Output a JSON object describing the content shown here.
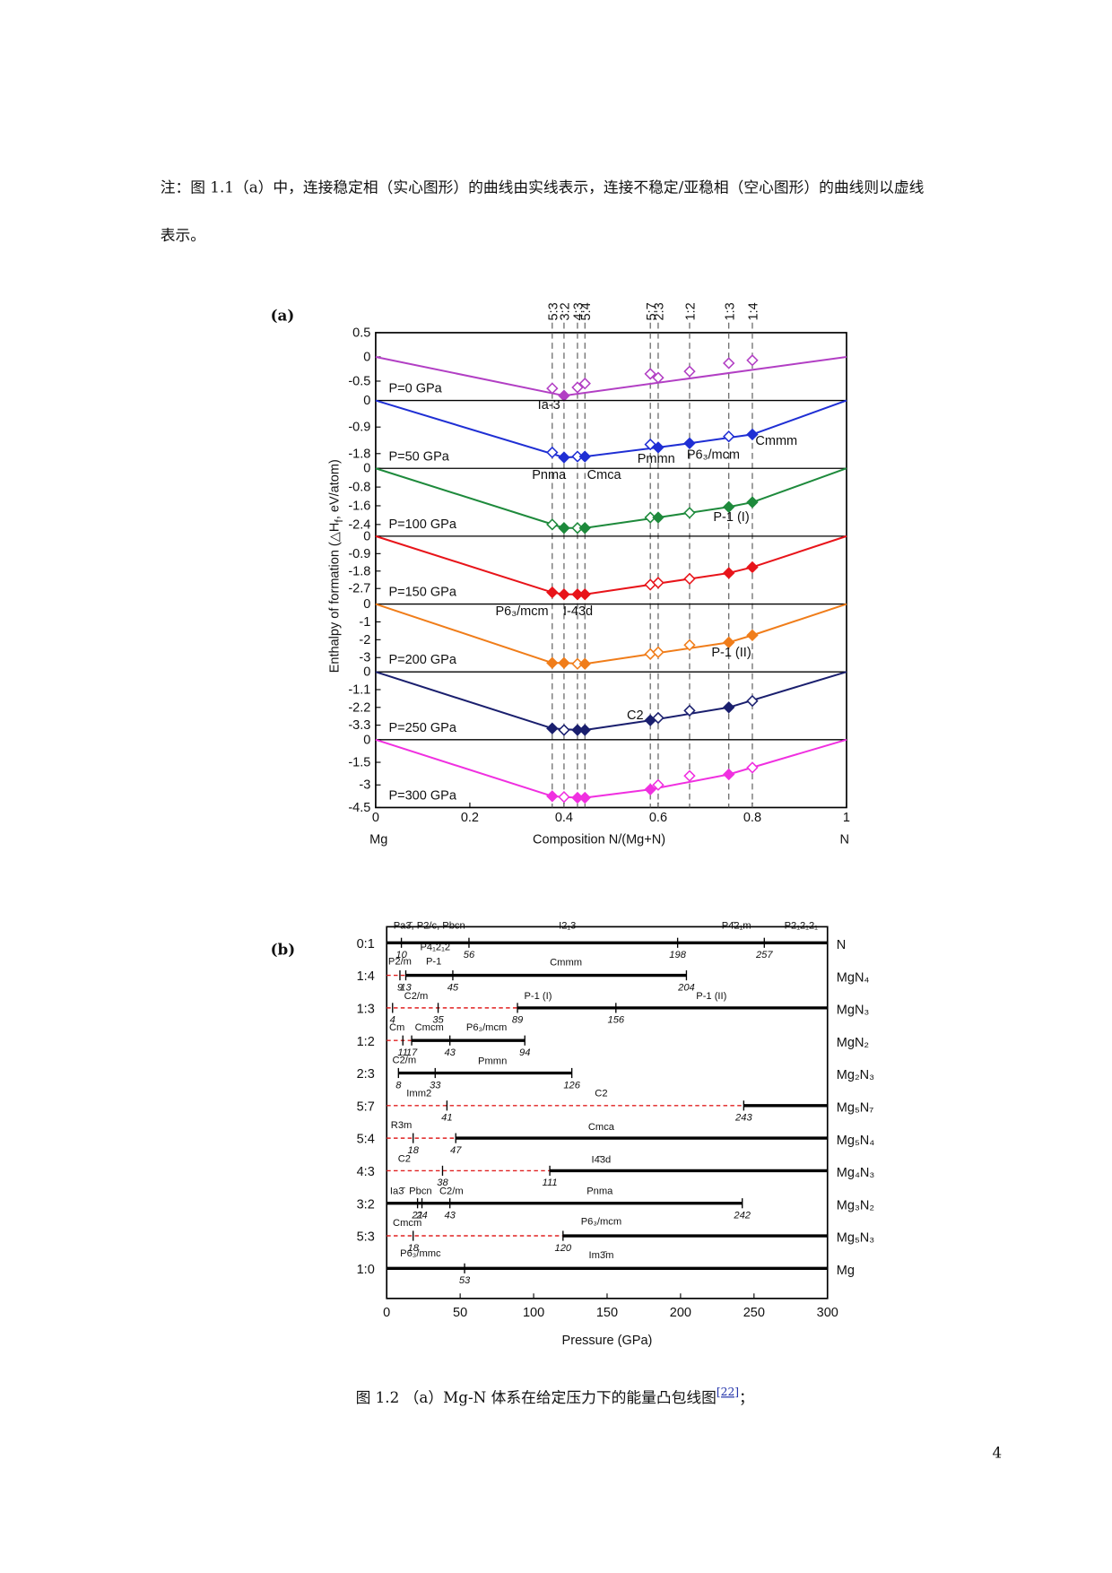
{
  "note": [
    "注：图 1.1（a）中，连接稳定相（实心图形）的曲线由实线表示，连接不稳定/亚稳相（空心图形）的曲线则以虚线",
    "表示。"
  ],
  "chart_data": [
    {
      "type": "convex-hull",
      "panel_label": "(a)",
      "xlabel": "Composition N/(Mg+N)",
      "x_end_labels": [
        "Mg",
        "N"
      ],
      "ylabel": [
        "Enthalpy of formation (△H",
        "f",
        ", eV/atom)"
      ],
      "xlim": [
        0,
        1
      ],
      "xticks": [
        0,
        0.2,
        0.4,
        0.6,
        0.8,
        1
      ],
      "x2ticks": [
        {
          "value": 0.375,
          "label": "5:3"
        },
        {
          "value": 0.4,
          "label": "3:2"
        },
        {
          "value": 0.4286,
          "label": "4:3"
        },
        {
          "value": 0.4444,
          "label": "5:4"
        },
        {
          "value": 0.5833,
          "label": "5:7"
        },
        {
          "value": 0.6,
          "label": "2:3"
        },
        {
          "value": 0.6667,
          "label": "1:2"
        },
        {
          "value": 0.75,
          "label": "1:3"
        },
        {
          "value": 0.8,
          "label": "1:4"
        }
      ],
      "x": [
        0,
        0.375,
        0.4,
        0.4286,
        0.4444,
        0.5833,
        0.6,
        0.6667,
        0.75,
        0.8,
        1
      ],
      "panels": [
        {
          "name": "P=0 GPa",
          "color": "#b23fc4",
          "ylim": [
            -0.9,
            0.5
          ],
          "yticks": [
            0.5,
            0,
            -0.5
          ],
          "values": [
            0,
            -0.65,
            -0.8,
            -0.63,
            -0.55,
            -0.35,
            -0.43,
            -0.3,
            -0.13,
            -0.07,
            0
          ],
          "filled": [
            null,
            false,
            true,
            false,
            false,
            false,
            false,
            false,
            false,
            false,
            null
          ]
        },
        {
          "name": "P=50 GPa",
          "color": "#1f2fd4",
          "ylim": [
            -2.3,
            0
          ],
          "yticks": [
            0,
            -0.9,
            -1.8
          ],
          "values": [
            0,
            -1.76,
            -1.93,
            -1.9,
            -1.9,
            -1.49,
            -1.59,
            -1.45,
            -1.22,
            -1.15,
            0
          ],
          "filled": [
            null,
            false,
            true,
            false,
            true,
            false,
            true,
            true,
            false,
            true,
            null
          ]
        },
        {
          "name": "P=100 GPa",
          "color": "#1e8a3c",
          "ylim": [
            -2.9,
            0
          ],
          "yticks": [
            0,
            -0.8,
            -1.6,
            -2.4
          ],
          "values": [
            0,
            -2.4,
            -2.55,
            -2.55,
            -2.55,
            -2.1,
            -2.1,
            -1.9,
            -1.65,
            -1.45,
            0
          ],
          "filled": [
            null,
            false,
            true,
            false,
            true,
            false,
            true,
            false,
            true,
            true,
            null
          ]
        },
        {
          "name": "P=150 GPa",
          "color": "#e8141a",
          "ylim": [
            -3.5,
            0
          ],
          "yticks": [
            0,
            -0.9,
            -1.8,
            -2.7
          ],
          "values": [
            0,
            -2.9,
            -3.0,
            -3.0,
            -3.0,
            -2.5,
            -2.4,
            -2.2,
            -1.9,
            -1.6,
            0
          ],
          "filled": [
            null,
            true,
            true,
            true,
            true,
            false,
            false,
            false,
            true,
            true,
            null
          ]
        },
        {
          "name": "P=200 GPa",
          "color": "#f07d1a",
          "ylim": [
            -3.8,
            0
          ],
          "yticks": [
            0,
            -1,
            -2,
            -3
          ],
          "values": [
            0,
            -3.3,
            -3.3,
            -3.35,
            -3.35,
            -2.8,
            -2.7,
            -2.3,
            -2.15,
            -1.75,
            0
          ],
          "filled": [
            null,
            true,
            true,
            false,
            true,
            false,
            false,
            false,
            true,
            true,
            null
          ]
        },
        {
          "name": "P=250 GPa",
          "color": "#1a1f6e",
          "ylim": [
            -4.2,
            0
          ],
          "yticks": [
            0,
            -1.1,
            -2.2,
            -3.3
          ],
          "values": [
            0,
            -3.5,
            -3.6,
            -3.6,
            -3.6,
            -3.0,
            -2.85,
            -2.4,
            -2.2,
            -1.8,
            0
          ],
          "filled": [
            null,
            true,
            false,
            true,
            true,
            true,
            false,
            false,
            true,
            false,
            null
          ]
        },
        {
          "name": "P=300 GPa",
          "color": "#f030e0",
          "ylim": [
            -4.5,
            0
          ],
          "yticks": [
            0,
            -1.5,
            -3,
            -4.5
          ],
          "values": [
            0,
            -3.75,
            -3.8,
            -3.85,
            -3.85,
            -3.3,
            -3.0,
            -2.4,
            -2.3,
            -1.85,
            0
          ],
          "filled": [
            null,
            true,
            false,
            true,
            true,
            true,
            false,
            false,
            true,
            false,
            null
          ]
        }
      ],
      "annotations": [
        "Ia-3",
        "Pnma",
        "Cmca",
        "Pmmn",
        "P6₃/mcm",
        "Cmmm",
        "P-1 (I)",
        "P6₃/mcm",
        "I-43d",
        "P-1 (II)",
        "C2"
      ]
    },
    {
      "type": "phase-diagram",
      "panel_label": "(b)",
      "xlabel": "Pressure (GPa)",
      "xlim": [
        0,
        300
      ],
      "xticks": [
        0,
        50,
        100,
        150,
        200,
        250,
        300
      ],
      "stable_color": "#000000",
      "unstable_color": "#e02020",
      "rows": [
        {
          "ratio": "0:1",
          "formula": "N",
          "phases": [
            "Pa3̄, P2/c, Pbcn",
            "I2₁3",
            "P4̄2₁m",
            "P2₁2₁2₁"
          ],
          "transitions": [
            {
              "p": 10,
              "color": "#111111"
            },
            {
              "p": 56,
              "color": "#111111"
            },
            {
              "p": 198,
              "color": "#111111"
            },
            {
              "p": 257,
              "color": "#111111"
            }
          ],
          "segments": [
            {
              "from": 0,
              "to": 300,
              "stable": true
            }
          ]
        },
        {
          "ratio": "1:4",
          "formula": "MgN₄",
          "phases": [
            "P2/m",
            "P4₁2₁2",
            "P-1",
            "Cmmm"
          ],
          "transitions": [
            {
              "p": 9,
              "color": "#111111"
            },
            {
              "p": 13,
              "color": "#1f3fa0"
            },
            {
              "p": 45,
              "color": "#111111"
            },
            {
              "p": 204,
              "color": "#1f3fa0"
            }
          ],
          "segments": [
            {
              "from": 0,
              "to": 13,
              "stable": false
            },
            {
              "from": 13,
              "to": 204,
              "stable": true
            }
          ]
        },
        {
          "ratio": "1:3",
          "formula": "MgN₃",
          "phases": [
            "C2/m",
            "P-1 (I)",
            "P-1 (II)"
          ],
          "transitions": [
            {
              "p": 4,
              "color": "#1f3fa0"
            },
            {
              "p": 35,
              "color": "#111111"
            },
            {
              "p": 89,
              "color": "#1f3fa0"
            },
            {
              "p": 156,
              "color": "#111111"
            }
          ],
          "segments": [
            {
              "from": 0,
              "to": 89,
              "stable": false
            },
            {
              "from": 89,
              "to": 300,
              "stable": true
            }
          ]
        },
        {
          "ratio": "1:2",
          "formula": "MgN₂",
          "phases": [
            "Cm",
            "Cmcm",
            "P6₃/mcm"
          ],
          "transitions": [
            {
              "p": 11,
              "color": "#111111"
            },
            {
              "p": 17,
              "color": "#1f3fa0"
            },
            {
              "p": 43,
              "color": "#111111"
            },
            {
              "p": 94,
              "color": "#1f3fa0"
            }
          ],
          "segments": [
            {
              "from": 0,
              "to": 17,
              "stable": false
            },
            {
              "from": 17,
              "to": 94,
              "stable": true
            }
          ]
        },
        {
          "ratio": "2:3",
          "formula": "Mg₂N₃",
          "phases": [
            "C2/m",
            "Pmmn"
          ],
          "transitions": [
            {
              "p": 8,
              "color": "#1f3fa0"
            },
            {
              "p": 33,
              "color": "#111111"
            },
            {
              "p": 126,
              "color": "#1f3fa0"
            }
          ],
          "segments": [
            {
              "from": 8,
              "to": 126,
              "stable": true
            }
          ]
        },
        {
          "ratio": "5:7",
          "formula": "Mg₅N₇",
          "phases": [
            "Imm2",
            "C2"
          ],
          "transitions": [
            {
              "p": 41,
              "color": "#111111"
            },
            {
              "p": 243,
              "color": "#1f3fa0"
            }
          ],
          "segments": [
            {
              "from": 0,
              "to": 243,
              "stable": false
            },
            {
              "from": 243,
              "to": 300,
              "stable": true
            }
          ]
        },
        {
          "ratio": "5:4",
          "formula": "Mg₅N₄",
          "phases": [
            "R3m",
            "Cmca"
          ],
          "transitions": [
            {
              "p": 18,
              "color": "#111111"
            },
            {
              "p": 47,
              "color": "#1f3fa0"
            }
          ],
          "segments": [
            {
              "from": 0,
              "to": 47,
              "stable": false
            },
            {
              "from": 47,
              "to": 300,
              "stable": true
            }
          ]
        },
        {
          "ratio": "4:3",
          "formula": "Mg₄N₃",
          "phases": [
            "C2",
            "I4̄3d"
          ],
          "transitions": [
            {
              "p": 38,
              "color": "#111111"
            },
            {
              "p": 111,
              "color": "#1f3fa0"
            }
          ],
          "segments": [
            {
              "from": 0,
              "to": 111,
              "stable": false
            },
            {
              "from": 111,
              "to": 300,
              "stable": true
            }
          ]
        },
        {
          "ratio": "3:2",
          "formula": "Mg₃N₂",
          "phases": [
            "Ia3̄",
            "Pbcn",
            "C2/m",
            "Pnma"
          ],
          "transitions": [
            {
              "p": 21,
              "color": "#111111"
            },
            {
              "p": 24,
              "color": "#111111"
            },
            {
              "p": 43,
              "color": "#111111"
            },
            {
              "p": 242,
              "color": "#1f3fa0"
            }
          ],
          "segments": [
            {
              "from": 0,
              "to": 242,
              "stable": true
            }
          ]
        },
        {
          "ratio": "5:3",
          "formula": "Mg₅N₃",
          "phases": [
            "Cmcm",
            "P6₃/mcm"
          ],
          "transitions": [
            {
              "p": 18,
              "color": "#111111"
            },
            {
              "p": 120,
              "color": "#1f3fa0"
            }
          ],
          "segments": [
            {
              "from": 0,
              "to": 120,
              "stable": false
            },
            {
              "from": 120,
              "to": 300,
              "stable": true
            }
          ]
        },
        {
          "ratio": "1:0",
          "formula": "Mg",
          "phases": [
            "P6₃/mmc",
            "Im3̄m"
          ],
          "transitions": [
            {
              "p": 53,
              "color": "#111111"
            }
          ],
          "segments": [
            {
              "from": 0,
              "to": 300,
              "stable": true
            }
          ]
        }
      ]
    }
  ],
  "caption": {
    "text": "图 1.2 （a）Mg-N 体系在给定压力下的能量凸包线图",
    "ref": "[22]",
    "end": "；"
  },
  "page_number": "4"
}
